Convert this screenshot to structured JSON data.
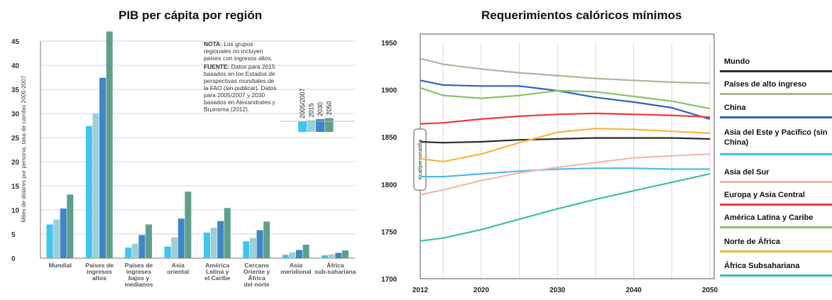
{
  "chart_data": [
    {
      "type": "bar",
      "title": "PIB per cápita por región",
      "ylabel": "Miles de dólares por persona, tasa de cambio 2005-2007",
      "ylim": [
        0,
        45
      ],
      "yticks": [
        "0",
        "5",
        "10",
        "15",
        "20",
        "25",
        "30",
        "35",
        "40",
        "45"
      ],
      "categories": [
        "Mundial",
        "Países de ingresos altos",
        "Países de ingreses bajos y medianos",
        "Asia oriental",
        "América Latina y el Caribe",
        "Cercano Oriente y África del norte",
        "Asia meridional",
        "África sub-sahariana"
      ],
      "series": [
        {
          "name": "2005/2007",
          "color": "#3ec6f0",
          "values": [
            7.0,
            27.4,
            2.2,
            2.4,
            5.3,
            3.5,
            0.7,
            0.6
          ]
        },
        {
          "name": "2015",
          "color": "#9ccfd8",
          "values": [
            8.0,
            30.0,
            3.0,
            4.3,
            6.3,
            4.2,
            1.2,
            0.8
          ]
        },
        {
          "name": "2030",
          "color": "#3f86c7",
          "values": [
            10.3,
            37.4,
            4.8,
            8.2,
            7.7,
            5.8,
            1.7,
            1.1
          ]
        },
        {
          "name": "2050",
          "color": "#5f9f8c",
          "values": [
            13.2,
            47.0,
            7.0,
            13.8,
            10.4,
            7.6,
            2.8,
            1.6
          ]
        }
      ],
      "note_label": "NOTA:",
      "note_text": "Los grupos regionales no incluyen países con ingresos altos.",
      "source_label": "FUENTE:",
      "source_text": "Datos para 2015 basados en los Estados de perspectivas mundiales de la FAO (sin publicar). Datos para 2005/2007 y 2030 basados en Alexandrates y Bruinsma (2012).",
      "legend": [
        "2005/2007",
        "2015",
        "2030",
        "2050"
      ]
    },
    {
      "type": "line",
      "title": "Requerimientos calóricos mínimos",
      "ylabel": "Kcal/persona/día",
      "ylim": [
        1700,
        1950
      ],
      "xlim": [
        2012,
        2050
      ],
      "yticks": [
        "1950",
        "1900",
        "1850",
        "1800",
        "1750",
        "1700"
      ],
      "xticks": [
        "2012",
        "2020",
        "2030",
        "2040",
        "2050"
      ],
      "x": [
        2012,
        2015,
        2020,
        2025,
        2030,
        2035,
        2040,
        2045,
        2050
      ],
      "series": [
        {
          "name": "Mundo",
          "color": "#2b2b2b",
          "values": [
            1845,
            1844,
            1845,
            1847,
            1848,
            1849,
            1849,
            1849,
            1848
          ]
        },
        {
          "name": "Países de alto ingreso",
          "color": "#b3b39b",
          "values": [
            1933,
            1927,
            1922,
            1918,
            1915,
            1912,
            1910,
            1908,
            1907
          ]
        },
        {
          "name": "China",
          "color": "#2f62bf",
          "values": [
            1910,
            1905,
            1904,
            1904,
            1899,
            1892,
            1887,
            1881,
            1869
          ]
        },
        {
          "name": "Asia del Este y Pacífico (sin China)",
          "color": "#4fb9e8",
          "values": [
            1808,
            1808,
            1811,
            1814,
            1816,
            1817,
            1817,
            1816,
            1816
          ]
        },
        {
          "name": "Asia del Sur",
          "color": "#f5b6ad",
          "values": [
            1789,
            1794,
            1804,
            1812,
            1818,
            1823,
            1828,
            1830,
            1832
          ]
        },
        {
          "name": "Europa y Asia Central",
          "color": "#ee3a3a",
          "values": [
            1864,
            1865,
            1869,
            1872,
            1874,
            1875,
            1874,
            1873,
            1871
          ]
        },
        {
          "name": "América Latina y Caribe",
          "color": "#86c36a",
          "values": [
            1902,
            1894,
            1891,
            1894,
            1899,
            1898,
            1893,
            1888,
            1880
          ]
        },
        {
          "name": "Norte de África",
          "color": "#f7b53c",
          "values": [
            1827,
            1824,
            1832,
            1844,
            1855,
            1859,
            1858,
            1856,
            1854
          ]
        },
        {
          "name": "África Subsahariana",
          "color": "#3cbfa8",
          "values": [
            1740,
            1743,
            1752,
            1763,
            1774,
            1784,
            1793,
            1802,
            1811
          ]
        }
      ]
    }
  ]
}
